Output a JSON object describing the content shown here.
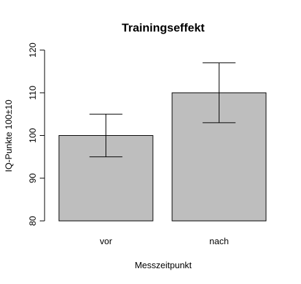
{
  "chart_data": {
    "type": "bar",
    "title": "Trainingseffekt",
    "xlabel": "Messzeitpunkt",
    "ylabel": "IQ-Punkte 100±10",
    "categories": [
      "vor",
      "nach"
    ],
    "values": [
      100,
      110
    ],
    "error_bars": [
      {
        "lower": 95,
        "upper": 105
      },
      {
        "lower": 103,
        "upper": 117
      }
    ],
    "ylim": [
      80,
      120
    ],
    "yticks": [
      "80",
      "90",
      "100",
      "110",
      "120"
    ],
    "grid": false,
    "bar_color": "#bebebe",
    "bar_border_color": "#000000",
    "error_bar_color": "#000000"
  }
}
